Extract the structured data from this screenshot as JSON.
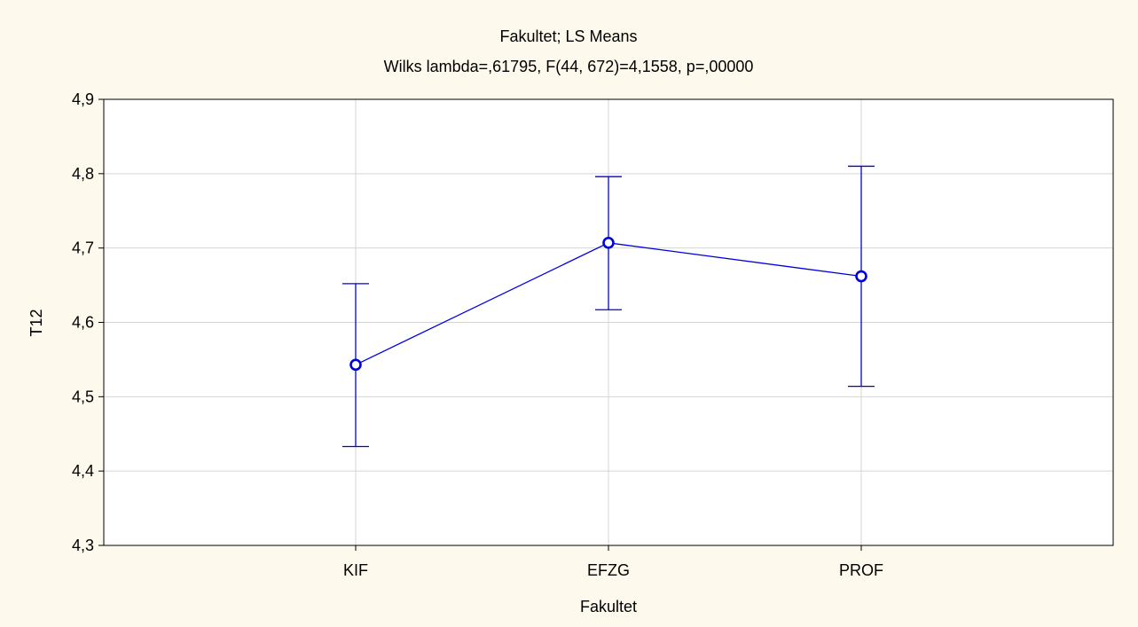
{
  "chart_data": {
    "type": "line",
    "title": "Fakultet; LS Means",
    "subtitle": "Wilks lambda=,61795, F(44, 672)=4,1558, p=,00000",
    "xlabel": "Fakultet",
    "ylabel": "T12",
    "categories": [
      "KIF",
      "EFZG",
      "PROF"
    ],
    "series": [
      {
        "values": [
          4.543,
          4.707,
          4.662
        ],
        "lower": [
          4.433,
          4.617,
          4.514
        ],
        "upper": [
          4.652,
          4.796,
          4.81
        ]
      }
    ],
    "ylim": [
      4.3,
      4.9
    ],
    "yticks": [
      "4,3",
      "4,4",
      "4,5",
      "4,6",
      "4,7",
      "4,8",
      "4,9"
    ],
    "grid": true,
    "colors": {
      "background": "#fdf9ec",
      "plot_background": "#ffffff",
      "series": "#0000e0",
      "grid": "#d4d4d4"
    }
  }
}
